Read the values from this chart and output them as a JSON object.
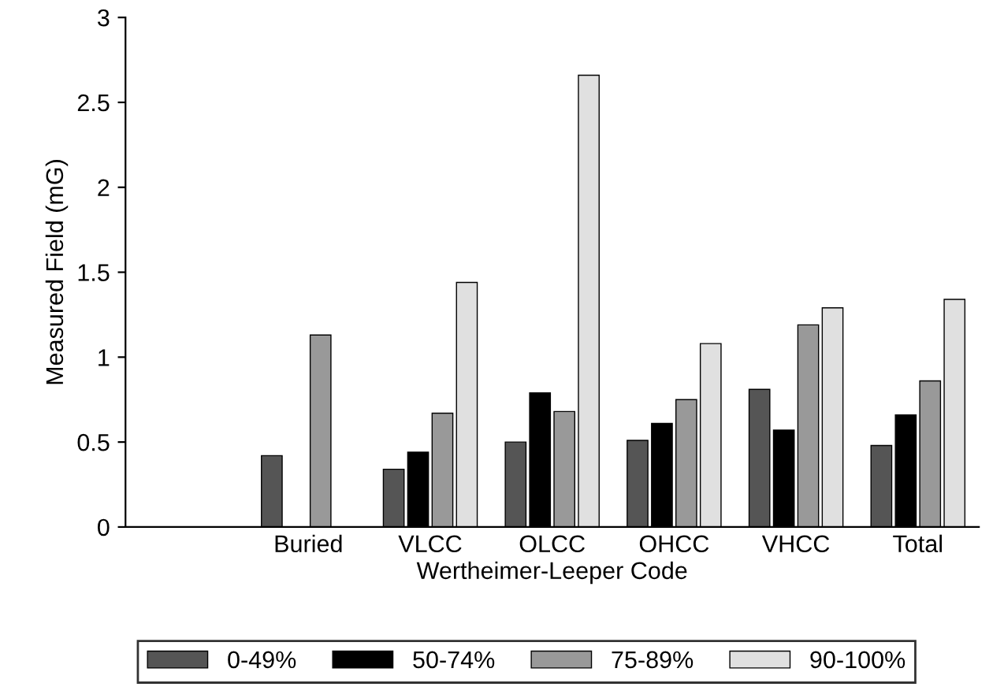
{
  "chart_data": {
    "type": "bar",
    "xlabel": "Wertheimer-Leeper Code",
    "ylabel": "Measured Field (mG)",
    "categories": [
      null,
      "Buried",
      "VLCC",
      "OLCC",
      "OHCC",
      "VHCC",
      "Total"
    ],
    "series": [
      {
        "name": "0-49%",
        "color": "#555555",
        "values": [
          null,
          0.42,
          0.34,
          0.5,
          0.51,
          0.81,
          0.48
        ]
      },
      {
        "name": "50-74%",
        "color": "#000000",
        "values": [
          null,
          null,
          0.44,
          0.79,
          0.61,
          0.57,
          0.66
        ]
      },
      {
        "name": "75-89%",
        "color": "#999999",
        "values": [
          null,
          1.13,
          0.67,
          0.68,
          0.75,
          1.19,
          0.86
        ]
      },
      {
        "name": "90-100%",
        "color": "#e0e0e0",
        "values": [
          null,
          null,
          1.44,
          2.66,
          1.08,
          1.29,
          1.34
        ]
      }
    ],
    "ylim": [
      0,
      3
    ],
    "yticks": [
      0,
      0.5,
      1,
      1.5,
      2,
      2.5,
      3
    ],
    "grid": false,
    "legend": "bottom"
  }
}
